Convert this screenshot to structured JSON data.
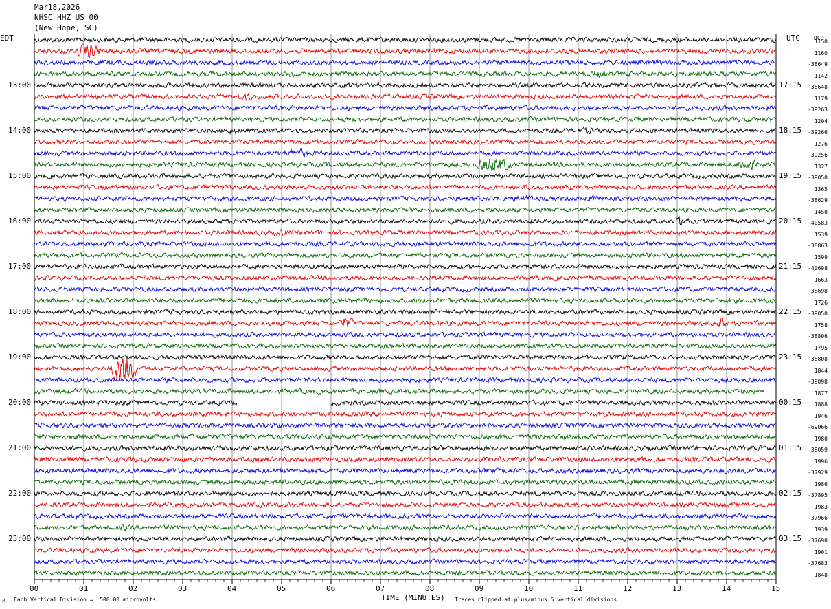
{
  "header": {
    "date": "Mar18,2026",
    "station": "NHSC HHZ US 00",
    "location": "(New Hope, SC)"
  },
  "axes": {
    "left_tz": "EDT",
    "right_tz": "UTC",
    "dc_label": "DC",
    "x_title": "TIME (MINUTES)",
    "x_ticks": [
      "00",
      "01",
      "02",
      "03",
      "04",
      "05",
      "06",
      "07",
      "08",
      "09",
      "10",
      "11",
      "12",
      "13",
      "14",
      "15"
    ],
    "left_hours": [
      "13:00",
      "14:00",
      "15:00",
      "16:00",
      "17:00",
      "18:00",
      "19:00",
      "20:00",
      "21:00",
      "22:00",
      "23:00"
    ],
    "right_hours": [
      "17:15",
      "18:15",
      "19:15",
      "20:15",
      "21:15",
      "22:15",
      "23:15",
      "00:15",
      "01:15",
      "02:15",
      "03:15"
    ]
  },
  "trace_colors": [
    "#000000",
    "#e00000",
    "#0000e0",
    "#006400"
  ],
  "dc_offsets": [
    "1150",
    "1160",
    "-38649",
    "1142",
    "-38648",
    "1179",
    "-39263",
    "1204",
    "-39266",
    "1276",
    "-39256",
    "1327",
    "-39050",
    "1365",
    "-38629",
    "1450",
    "-40583",
    "1539",
    "-38863",
    "1599",
    "-40698",
    "1663",
    "-38698",
    "1726",
    "-39050",
    "1758",
    "-38806",
    "1795",
    "-38808",
    "1844",
    "-39098",
    "1877",
    "1888",
    "1946",
    "-69066",
    "1980",
    "-38059",
    "1996",
    "-37929",
    "1986",
    "-37895",
    "1983",
    "-37966",
    "1939",
    "-37690",
    "1901",
    "-37683",
    "1848"
  ],
  "footer": {
    "scale": "Each Vertical Division =  500.00 microvolts",
    "clip": "Traces clipped at plus/minus 5 vertical divisions"
  }
}
